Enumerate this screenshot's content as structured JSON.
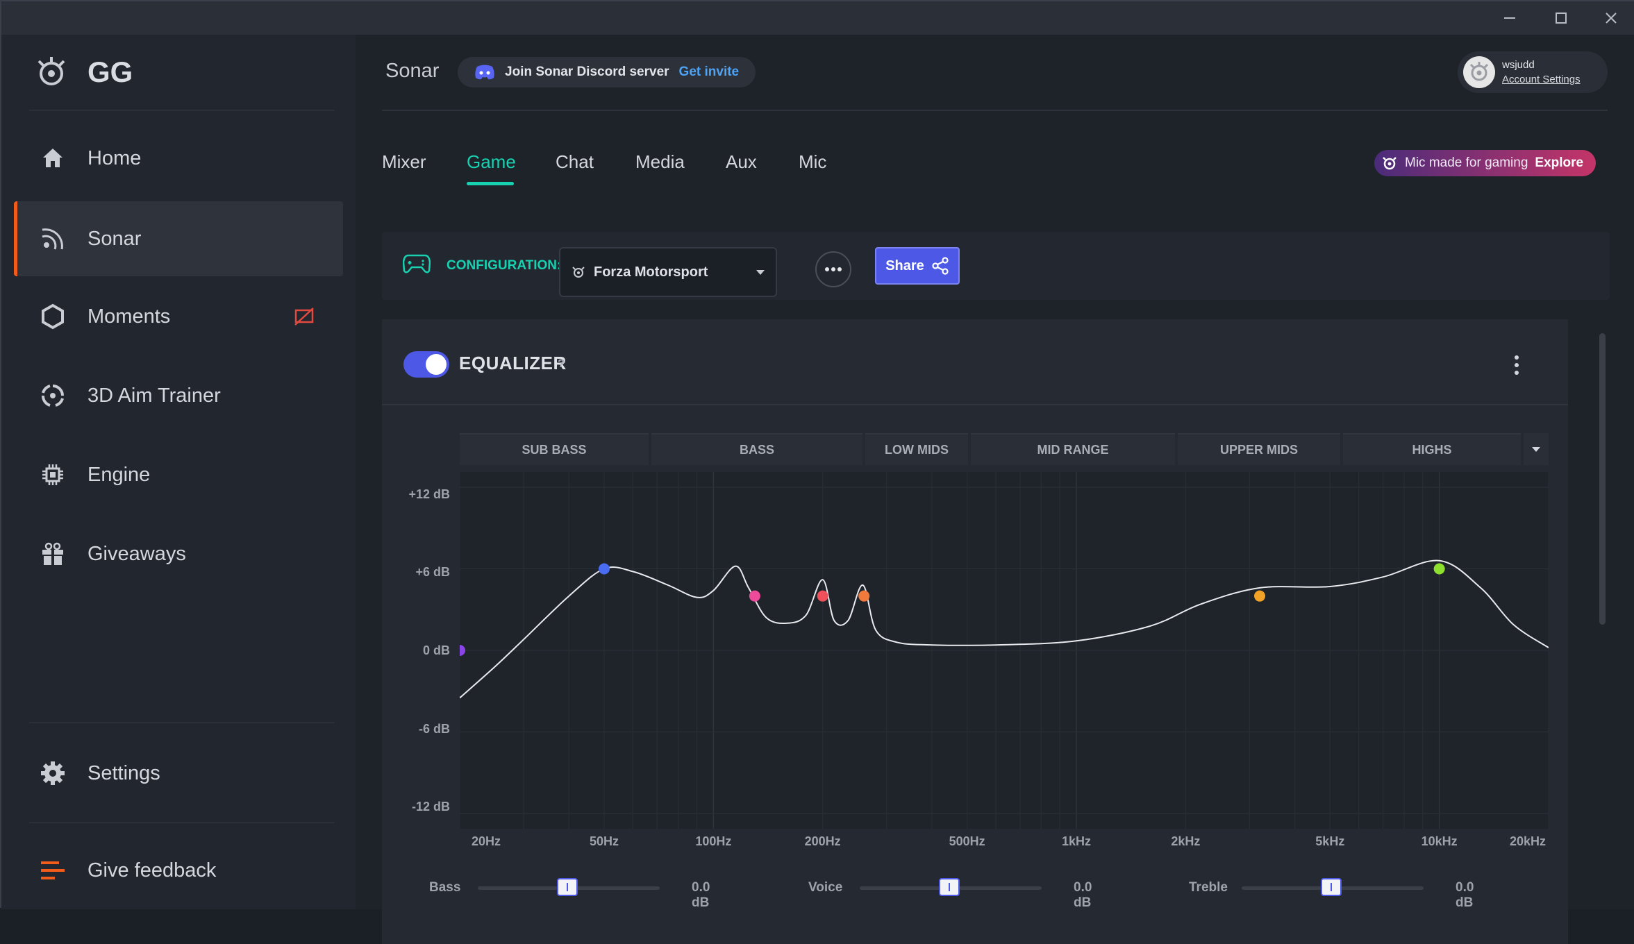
{
  "window": {
    "minimize_icon": "minimize-icon",
    "maximize_icon": "maximize-icon",
    "close_icon": "close-icon"
  },
  "sidebar": {
    "logo_text": "GG",
    "items": [
      {
        "label": "Home",
        "icon": "home-icon"
      },
      {
        "label": "Sonar",
        "icon": "sonar-icon",
        "active": true
      },
      {
        "label": "Moments",
        "icon": "hexagon-icon",
        "badge_icon": "record-off-icon"
      },
      {
        "label": "3D Aim Trainer",
        "icon": "crosshair-icon"
      },
      {
        "label": "Engine",
        "icon": "chip-icon"
      },
      {
        "label": "Giveaways",
        "icon": "gift-icon"
      }
    ],
    "settings_label": "Settings",
    "feedback_label": "Give feedback"
  },
  "header": {
    "title": "Sonar",
    "discord_text": "Join Sonar Discord server",
    "discord_link": "Get invite",
    "account_name": "wsjudd",
    "account_link": "Account Settings"
  },
  "tabs": [
    "Mixer",
    "Game",
    "Chat",
    "Media",
    "Aux",
    "Mic"
  ],
  "active_tab": "Game",
  "promo": {
    "text": "Mic made for gaming",
    "link": "Explore"
  },
  "config": {
    "label": "CONFIGURATION:",
    "selected": "Forza Motorsport",
    "share_label": "Share"
  },
  "equalizer": {
    "enabled": true,
    "title": "EQUALIZER",
    "help": "?",
    "bands": [
      "SUB BASS",
      "BASS",
      "LOW MIDS",
      "MID RANGE",
      "UPPER MIDS",
      "HIGHS"
    ],
    "y_ticks": [
      "+12 dB",
      "+6 dB",
      "0 dB",
      "-6 dB",
      "-12 dB"
    ],
    "x_ticks": [
      "20Hz",
      "50Hz",
      "100Hz",
      "200Hz",
      "500Hz",
      "1kHz",
      "2kHz",
      "5kHz",
      "10kHz",
      "20kHz"
    ],
    "accent_color": "#18d1b1"
  },
  "sliders": [
    {
      "label": "Bass",
      "value": "0.0 dB",
      "level": 0.5
    },
    {
      "label": "Voice",
      "value": "0.0 dB",
      "level": 0.5
    },
    {
      "label": "Treble",
      "value": "0.0 dB",
      "level": 0.5
    }
  ],
  "chart_data": {
    "type": "line",
    "xscale": "log",
    "xlim_hz": [
      20,
      20000
    ],
    "ylim_db": [
      -12,
      12
    ],
    "points": [
      {
        "freq_hz": 20,
        "gain_db": 0,
        "color": "#8a44e8"
      },
      {
        "freq_hz": 50,
        "gain_db": 6,
        "color": "#4a6cf2"
      },
      {
        "freq_hz": 130,
        "gain_db": 4,
        "color": "#ee4c9a"
      },
      {
        "freq_hz": 200,
        "gain_db": 4,
        "color": "#f0505a"
      },
      {
        "freq_hz": 260,
        "gain_db": 4,
        "color": "#f07a3c"
      },
      {
        "freq_hz": 3200,
        "gain_db": 4,
        "color": "#f2a227"
      },
      {
        "freq_hz": 10000,
        "gain_db": 6,
        "color": "#8de12e"
      }
    ],
    "curve": [
      [
        20,
        -3.5
      ],
      [
        25,
        -1.2
      ],
      [
        30,
        0.8
      ],
      [
        40,
        4
      ],
      [
        50,
        6
      ],
      [
        60,
        5.8
      ],
      [
        75,
        4.8
      ],
      [
        90,
        3.9
      ],
      [
        100,
        4.4
      ],
      [
        115,
        6.2
      ],
      [
        125,
        4.6
      ],
      [
        140,
        2.4
      ],
      [
        160,
        2.0
      ],
      [
        180,
        2.6
      ],
      [
        200,
        5.2
      ],
      [
        215,
        2.2
      ],
      [
        235,
        2.2
      ],
      [
        258,
        4.8
      ],
      [
        280,
        1.5
      ],
      [
        320,
        0.6
      ],
      [
        400,
        0.4
      ],
      [
        600,
        0.4
      ],
      [
        1000,
        0.7
      ],
      [
        1600,
        1.8
      ],
      [
        2200,
        3.4
      ],
      [
        3200,
        4.6
      ],
      [
        5000,
        4.7
      ],
      [
        7000,
        5.4
      ],
      [
        10000,
        6.6
      ],
      [
        13000,
        4.6
      ],
      [
        16000,
        1.9
      ],
      [
        20000,
        0.2
      ]
    ]
  }
}
